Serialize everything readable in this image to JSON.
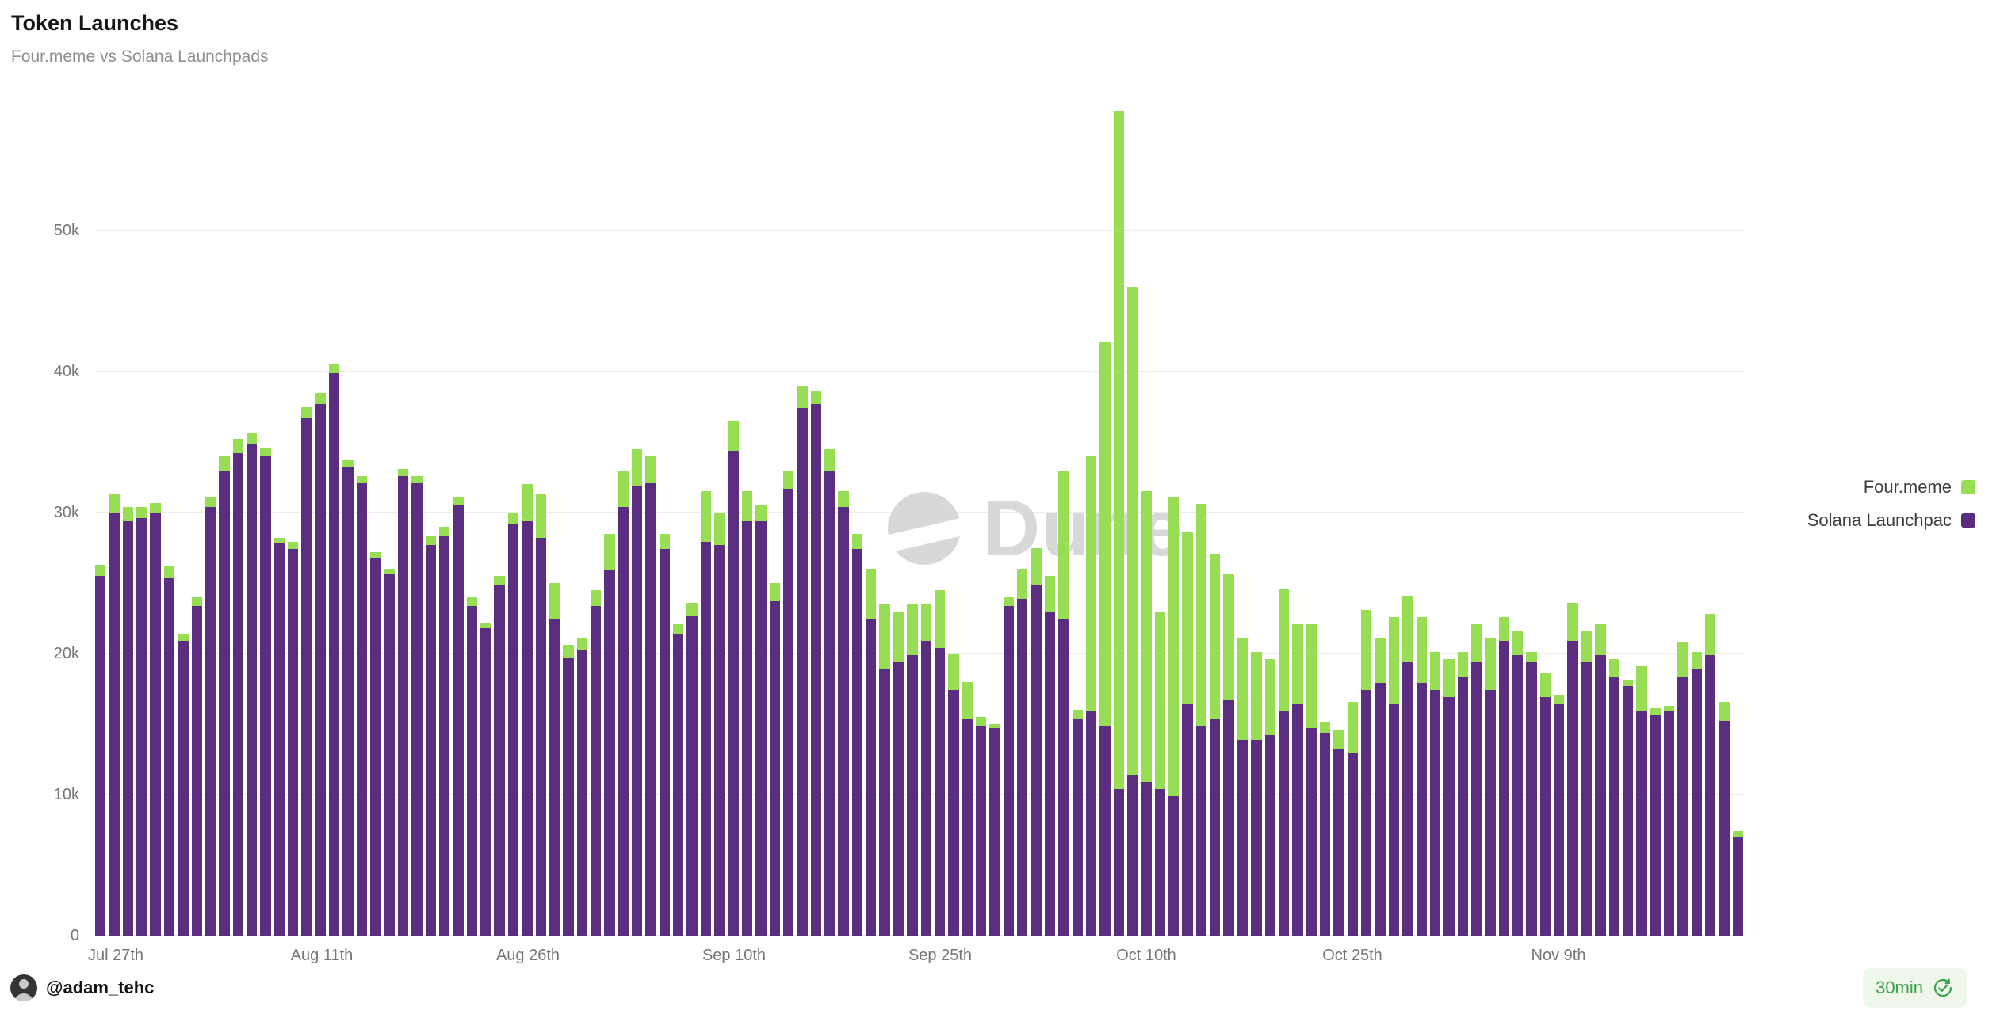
{
  "header": {
    "title": "Token Launches",
    "subtitle": "Four.meme vs Solana Launchpads"
  },
  "watermark": "Dune",
  "legend": [
    {
      "label": "Four.meme",
      "color": "#98de54"
    },
    {
      "label": "Solana Launchpac",
      "color": "#5b2d81"
    }
  ],
  "footer": {
    "author": "@adam_tehc",
    "refresh_label": "30min"
  },
  "chart_data": {
    "type": "bar",
    "stacked": true,
    "title": "Token Launches",
    "subtitle": "Four.meme vs Solana Launchpads",
    "xlabel": "",
    "ylabel": "",
    "ylim": [
      0,
      58500
    ],
    "grid": "horizontal",
    "legend_position": "right",
    "x": [
      "Jul 26",
      "Jul 27",
      "Jul 28",
      "Jul 29",
      "Jul 30",
      "Jul 31",
      "Aug 1",
      "Aug 2",
      "Aug 3",
      "Aug 4",
      "Aug 5",
      "Aug 6",
      "Aug 7",
      "Aug 8",
      "Aug 9",
      "Aug 10",
      "Aug 11",
      "Aug 12",
      "Aug 13",
      "Aug 14",
      "Aug 15",
      "Aug 16",
      "Aug 17",
      "Aug 18",
      "Aug 19",
      "Aug 20",
      "Aug 21",
      "Aug 22",
      "Aug 23",
      "Aug 24",
      "Aug 25",
      "Aug 26",
      "Aug 27",
      "Aug 28",
      "Aug 29",
      "Aug 30",
      "Aug 31",
      "Sep 1",
      "Sep 2",
      "Sep 3",
      "Sep 4",
      "Sep 5",
      "Sep 6",
      "Sep 7",
      "Sep 8",
      "Sep 9",
      "Sep 10",
      "Sep 11",
      "Sep 12",
      "Sep 13",
      "Sep 14",
      "Sep 15",
      "Sep 16",
      "Sep 17",
      "Sep 18",
      "Sep 19",
      "Sep 20",
      "Sep 21",
      "Sep 22",
      "Sep 23",
      "Sep 24",
      "Sep 25",
      "Sep 26",
      "Sep 27",
      "Sep 28",
      "Sep 29",
      "Sep 30",
      "Oct 1",
      "Oct 2",
      "Oct 3",
      "Oct 4",
      "Oct 5",
      "Oct 6",
      "Oct 7",
      "Oct 8",
      "Oct 9",
      "Oct 10",
      "Oct 11",
      "Oct 12",
      "Oct 13",
      "Oct 14",
      "Oct 15",
      "Oct 16",
      "Oct 17",
      "Oct 18",
      "Oct 19",
      "Oct 20",
      "Oct 21",
      "Oct 22",
      "Oct 23",
      "Oct 24",
      "Oct 25",
      "Oct 26",
      "Oct 27",
      "Oct 28",
      "Oct 29",
      "Oct 30",
      "Oct 31",
      "Nov 1",
      "Nov 2",
      "Nov 3",
      "Nov 4",
      "Nov 5",
      "Nov 6",
      "Nov 7",
      "Nov 8",
      "Nov 9",
      "Nov 10",
      "Nov 11",
      "Nov 12",
      "Nov 13",
      "Nov 14",
      "Nov 15",
      "Nov 16",
      "Nov 17",
      "Nov 18",
      "Nov 19",
      "Nov 20",
      "Nov 21",
      "Nov 22"
    ],
    "series": [
      {
        "name": "Four.meme",
        "color": "#98de54",
        "values": [
          800,
          1300,
          1000,
          800,
          700,
          800,
          500,
          600,
          700,
          1000,
          1000,
          700,
          600,
          400,
          500,
          800,
          800,
          600,
          500,
          500,
          400,
          400,
          500,
          500,
          600,
          600,
          600,
          600,
          400,
          600,
          800,
          2600,
          3100,
          2600,
          900,
          900,
          1100,
          2600,
          2600,
          2600,
          1900,
          1100,
          700,
          900,
          3600,
          2300,
          2100,
          2100,
          1100,
          1300,
          1300,
          1600,
          900,
          1600,
          1100,
          1100,
          3600,
          4600,
          3600,
          3600,
          2600,
          4100,
          2600,
          2600,
          600,
          300,
          600,
          2100,
          2600,
          2600,
          10600,
          600,
          18100,
          27200,
          48100,
          34600,
          20600,
          12600,
          21200,
          12200,
          15700,
          11700,
          8900,
          7200,
          6200,
          5400,
          8700,
          5700,
          7400,
          700,
          1400,
          3700,
          5700,
          3200,
          6200,
          4700,
          4700,
          2700,
          2700,
          1700,
          2700,
          3700,
          1700,
          1700,
          700,
          1700,
          700,
          2700,
          2200,
          2200,
          1200,
          400,
          3200,
          400,
          400,
          2400,
          1200,
          2900,
          1400,
          400
        ]
      },
      {
        "name": "Solana Launchpads",
        "color": "#5b2d81",
        "values": [
          25500,
          30000,
          29400,
          29600,
          30000,
          25400,
          20900,
          23400,
          30400,
          33000,
          34200,
          34900,
          34000,
          27800,
          27400,
          36700,
          37700,
          39900,
          33200,
          32100,
          26800,
          25600,
          32600,
          32100,
          27700,
          28400,
          30500,
          23400,
          21800,
          24900,
          29200,
          29400,
          28200,
          22400,
          19700,
          20200,
          23400,
          25900,
          30400,
          31900,
          32100,
          27400,
          21400,
          22700,
          27900,
          27700,
          34400,
          29400,
          29400,
          23700,
          31700,
          37400,
          37700,
          32900,
          30400,
          27400,
          22400,
          18900,
          19400,
          19900,
          20900,
          20400,
          17400,
          15400,
          14900,
          14700,
          23400,
          23900,
          24900,
          22900,
          22400,
          15400,
          15900,
          14900,
          10400,
          11400,
          10900,
          10400,
          9900,
          16400,
          14900,
          15400,
          16700,
          13900,
          13900,
          14200,
          15900,
          16400,
          14700,
          14400,
          13200,
          12900,
          17400,
          17900,
          16400,
          19400,
          17900,
          17400,
          16900,
          18400,
          19400,
          17400,
          20900,
          19900,
          19400,
          16900,
          16400,
          20900,
          19400,
          19900,
          18400,
          17700,
          15900,
          15700,
          15900,
          18400,
          18900,
          19900,
          15200,
          7000
        ]
      }
    ],
    "yticks": [
      {
        "value": 0,
        "label": "0"
      },
      {
        "value": 10000,
        "label": "10k"
      },
      {
        "value": 20000,
        "label": "20k"
      },
      {
        "value": 30000,
        "label": "30k"
      },
      {
        "value": 40000,
        "label": "40k"
      },
      {
        "value": 50000,
        "label": "50k"
      }
    ],
    "xticks": [
      {
        "index": 1,
        "label": "Jul 27th"
      },
      {
        "index": 16,
        "label": "Aug 11th"
      },
      {
        "index": 31,
        "label": "Aug 26th"
      },
      {
        "index": 46,
        "label": "Sep 10th"
      },
      {
        "index": 61,
        "label": "Sep 25th"
      },
      {
        "index": 76,
        "label": "Oct 10th"
      },
      {
        "index": 91,
        "label": "Oct 25th"
      },
      {
        "index": 106,
        "label": "Nov 9th"
      }
    ]
  }
}
